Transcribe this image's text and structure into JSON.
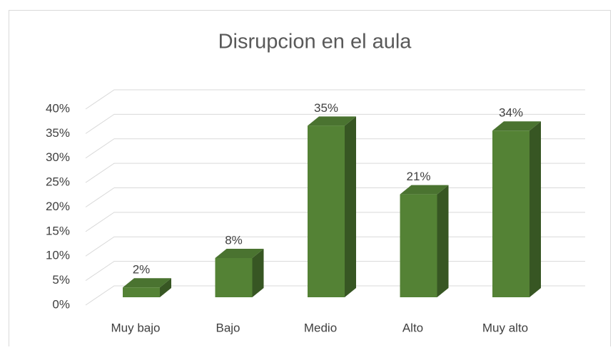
{
  "chart_data": {
    "type": "bar3d",
    "title": "Disrupcion en el aula",
    "categories": [
      "Muy bajo",
      "Bajo",
      "Medio",
      "Alto",
      "Muy alto"
    ],
    "values": [
      2,
      8,
      35,
      21,
      34
    ],
    "value_labels": [
      "2%",
      "8%",
      "35%",
      "21%",
      "34%"
    ],
    "color": "#548235",
    "ylim": [
      0,
      40
    ],
    "yticks": [
      {
        "value": 0,
        "label": "0%"
      },
      {
        "value": 5,
        "label": "5%"
      },
      {
        "value": 10,
        "label": "10%"
      },
      {
        "value": 15,
        "label": "15%"
      },
      {
        "value": 20,
        "label": "20%"
      },
      {
        "value": 25,
        "label": "25%"
      },
      {
        "value": 30,
        "label": "30%"
      },
      {
        "value": 35,
        "label": "35%"
      },
      {
        "value": 40,
        "label": "40%"
      }
    ],
    "grid": true
  }
}
